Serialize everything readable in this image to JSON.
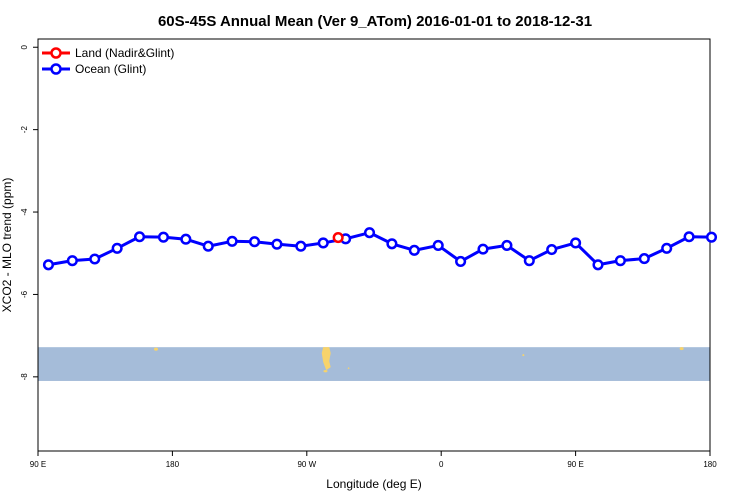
{
  "chart_data": {
    "type": "line",
    "title": "60S-45S Annual Mean (Ver 9_ATom)   2016-01-01 to 2018-12-31",
    "xlabel": "Longitude (deg E)",
    "ylabel": "XCO2 - MLO trend (ppm)",
    "x_ticks": [
      {
        "value": 90,
        "label": "90 E"
      },
      {
        "value": 180,
        "label": "180"
      },
      {
        "value": 270,
        "label": "90 W"
      },
      {
        "value": 360,
        "label": "0"
      },
      {
        "value": 450,
        "label": "90 E"
      },
      {
        "value": 540,
        "label": "180"
      }
    ],
    "y_ticks": [
      {
        "value": 0,
        "label": "0"
      },
      {
        "value": -2,
        "label": "-2"
      },
      {
        "value": -4,
        "label": "-4"
      },
      {
        "value": -6,
        "label": "-6"
      },
      {
        "value": -8,
        "label": "-8"
      }
    ],
    "xlim": [
      90,
      540
    ],
    "ylim": [
      -9.8,
      0.2
    ],
    "grid": false,
    "legend_position": "top-left",
    "series": [
      {
        "name": "Land (Nadir&Glint)",
        "color": "#ff0000",
        "x": [
          291
        ],
        "y": [
          -4.62
        ]
      },
      {
        "name": "Ocean (Glint)",
        "color": "#0000ff",
        "x": [
          97,
          113,
          128,
          143,
          158,
          174,
          189,
          204,
          220,
          235,
          250,
          266,
          281,
          296,
          312,
          327,
          342,
          358,
          373,
          388,
          404,
          419,
          434,
          450,
          465,
          480,
          496,
          511,
          526,
          541
        ],
        "y": [
          -5.28,
          -5.18,
          -5.14,
          -4.88,
          -4.6,
          -4.61,
          -4.66,
          -4.83,
          -4.71,
          -4.72,
          -4.78,
          -4.83,
          -4.75,
          -4.65,
          -4.5,
          -4.77,
          -4.93,
          -4.81,
          -5.2,
          -4.9,
          -4.81,
          -5.18,
          -4.91,
          -4.75,
          -5.28,
          -5.18,
          -5.13,
          -4.88,
          -4.6,
          -4.61
        ]
      }
    ],
    "map_strip": {
      "y_range": [
        -7.28,
        -8.1
      ],
      "ocean_color": "#a5bcd9",
      "land_color": "#f7d36b"
    }
  }
}
